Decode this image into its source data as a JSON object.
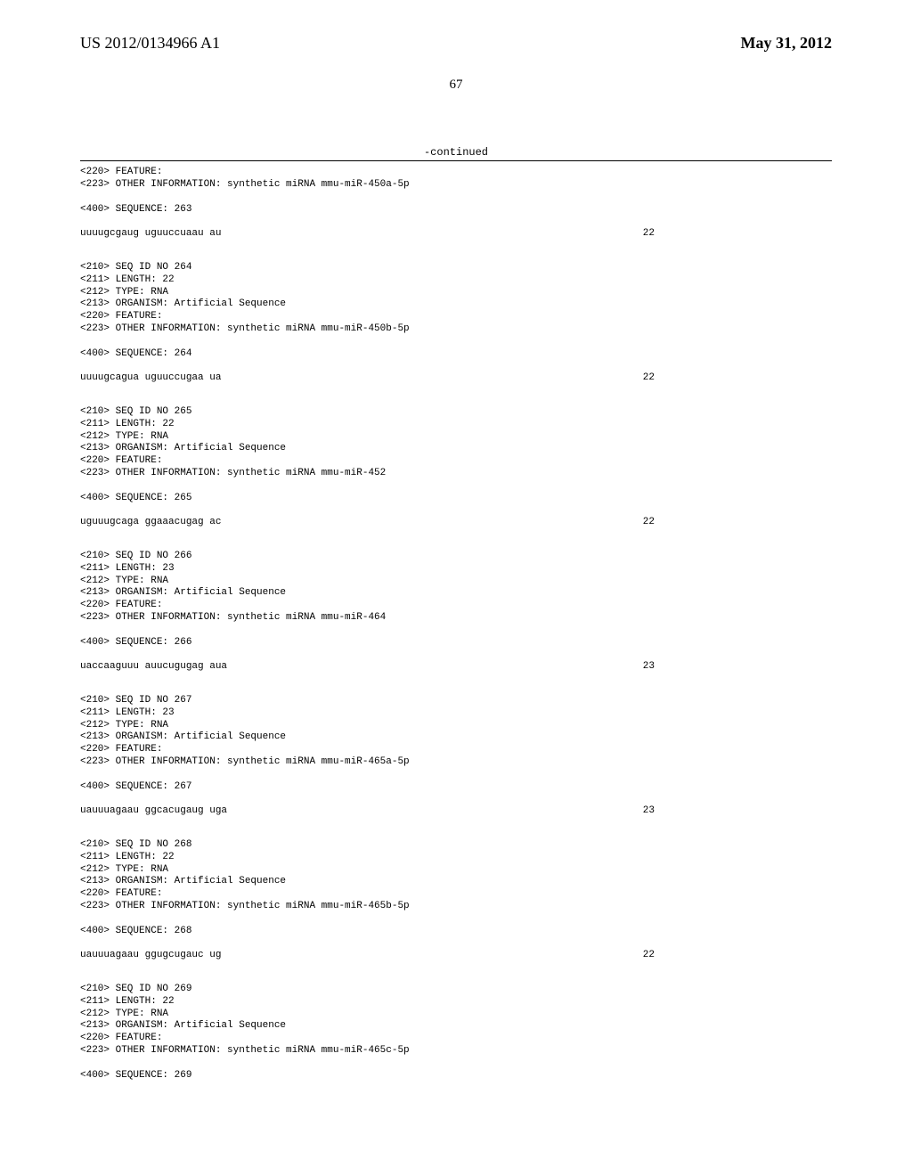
{
  "header": {
    "publication_number": "US 2012/0134966 A1",
    "publication_date": "May 31, 2012"
  },
  "page_number": "67",
  "continued_label": "-continued",
  "entries": [
    {
      "pre_lines": [
        "<220> FEATURE:",
        "<223> OTHER INFORMATION: synthetic miRNA mmu-miR-450a-5p"
      ],
      "seq_label": "<400> SEQUENCE: 263",
      "sequence": "uuuugcgaug uguuccuaau au",
      "length": "22"
    },
    {
      "pre_lines": [
        "<210> SEQ ID NO 264",
        "<211> LENGTH: 22",
        "<212> TYPE: RNA",
        "<213> ORGANISM: Artificial Sequence",
        "<220> FEATURE:",
        "<223> OTHER INFORMATION: synthetic miRNA mmu-miR-450b-5p"
      ],
      "seq_label": "<400> SEQUENCE: 264",
      "sequence": "uuuugcagua uguuccugaa ua",
      "length": "22"
    },
    {
      "pre_lines": [
        "<210> SEQ ID NO 265",
        "<211> LENGTH: 22",
        "<212> TYPE: RNA",
        "<213> ORGANISM: Artificial Sequence",
        "<220> FEATURE:",
        "<223> OTHER INFORMATION: synthetic miRNA mmu-miR-452"
      ],
      "seq_label": "<400> SEQUENCE: 265",
      "sequence": "uguuugcaga ggaaacugag ac",
      "length": "22"
    },
    {
      "pre_lines": [
        "<210> SEQ ID NO 266",
        "<211> LENGTH: 23",
        "<212> TYPE: RNA",
        "<213> ORGANISM: Artificial Sequence",
        "<220> FEATURE:",
        "<223> OTHER INFORMATION: synthetic miRNA mmu-miR-464"
      ],
      "seq_label": "<400> SEQUENCE: 266",
      "sequence": "uaccaaguuu auucugugag aua",
      "length": "23"
    },
    {
      "pre_lines": [
        "<210> SEQ ID NO 267",
        "<211> LENGTH: 23",
        "<212> TYPE: RNA",
        "<213> ORGANISM: Artificial Sequence",
        "<220> FEATURE:",
        "<223> OTHER INFORMATION: synthetic miRNA mmu-miR-465a-5p"
      ],
      "seq_label": "<400> SEQUENCE: 267",
      "sequence": "uauuuagaau ggcacugaug uga",
      "length": "23"
    },
    {
      "pre_lines": [
        "<210> SEQ ID NO 268",
        "<211> LENGTH: 22",
        "<212> TYPE: RNA",
        "<213> ORGANISM: Artificial Sequence",
        "<220> FEATURE:",
        "<223> OTHER INFORMATION: synthetic miRNA mmu-miR-465b-5p"
      ],
      "seq_label": "<400> SEQUENCE: 268",
      "sequence": "uauuuagaau ggugcugauc ug",
      "length": "22"
    },
    {
      "pre_lines": [
        "<210> SEQ ID NO 269",
        "<211> LENGTH: 22",
        "<212> TYPE: RNA",
        "<213> ORGANISM: Artificial Sequence",
        "<220> FEATURE:",
        "<223> OTHER INFORMATION: synthetic miRNA mmu-miR-465c-5p"
      ],
      "seq_label": "<400> SEQUENCE: 269",
      "sequence": "",
      "length": ""
    }
  ]
}
